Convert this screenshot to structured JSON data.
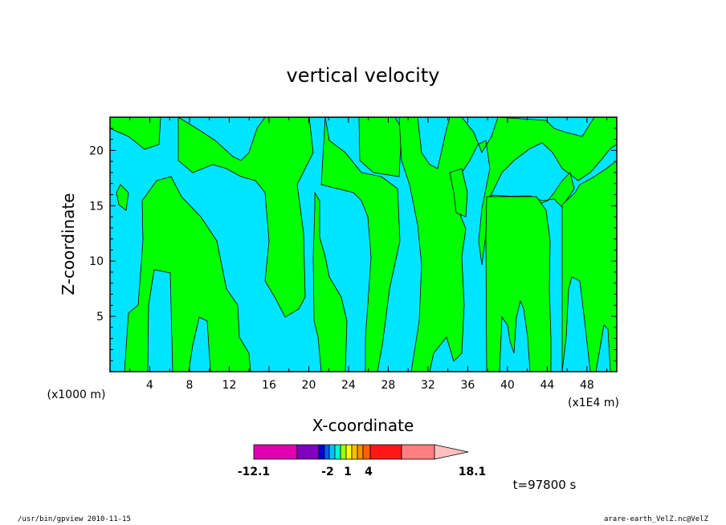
{
  "chart_data": {
    "type": "heatmap",
    "title": "vertical velocity",
    "xlabel": "X-coordinate",
    "ylabel": "Z-coordinate",
    "x_multiplier_label": "(x1000 m)",
    "x_unit_label": "(x1E4 m)",
    "xlim": [
      0,
      51
    ],
    "ylim": [
      0,
      23
    ],
    "xticks": [
      "4",
      "8",
      "12",
      "16",
      "20",
      "24",
      "28",
      "32",
      "36",
      "40",
      "44",
      "48"
    ],
    "yticks": [
      "5",
      "10",
      "15",
      "20"
    ],
    "colors": {
      "positive": "#00ff00",
      "negative": "#00e5ff"
    },
    "colorbar": {
      "labels": [
        "-12.1",
        "-2",
        "1",
        "4",
        "18.1"
      ],
      "colors": [
        "#e000b0",
        "#8000c0",
        "#0000d0",
        "#0060ff",
        "#00c0ff",
        "#00ffd0",
        "#a0ff00",
        "#ffff00",
        "#ffc000",
        "#ff9000",
        "#ff6000",
        "#ff1818",
        "#ff8080",
        "#ffc0c0"
      ]
    },
    "positive_regions": [
      {
        "x": [
          1.0,
          1.8,
          2.5,
          3.0,
          3.5,
          3.5,
          2.8,
          2.2,
          1.6,
          1.2,
          0.0,
          0.0
        ],
        "y": [
          0,
          0,
          0,
          5,
          5.8,
          9,
          13,
          15.5,
          16.5,
          17.5,
          21,
          23
        ]
      },
      {
        "x": [
          9.0,
          9.5,
          10.0,
          11.0,
          13.0,
          14.5,
          14.8,
          14.8,
          14.0,
          12.5,
          11.0,
          9.0
        ]
      },
      {
        "x": [
          15.0,
          16.0,
          17.0,
          18.0,
          19.0,
          20.0,
          21.0,
          22.0,
          24.0,
          26.0,
          27.0
        ]
      },
      {
        "x": [
          29.0,
          30.0,
          31.0,
          32.0,
          33.0,
          34.0,
          35.0,
          36.0,
          37.0,
          38.0
        ]
      },
      {
        "x": [
          39.0,
          40.0,
          41.0,
          42.0,
          43.0,
          44.0,
          45.0,
          46.0,
          47.0,
          48.0,
          50.0
        ]
      }
    ],
    "time_label": "t=97800  s"
  },
  "footer": {
    "left": "/usr/bin/gpview  2010-11-15",
    "right": "arare-earth_VelZ.nc@VelZ"
  }
}
